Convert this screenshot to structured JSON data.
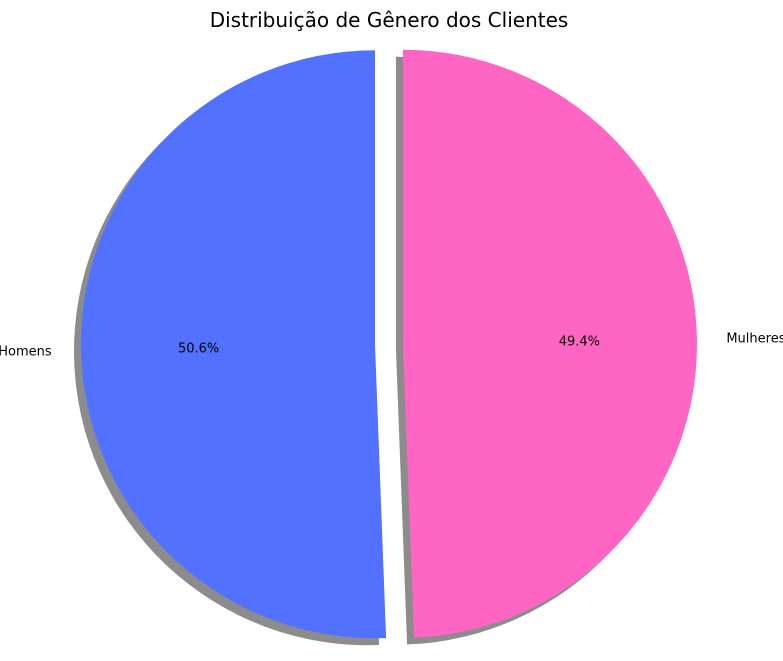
{
  "chart_data": {
    "type": "pie",
    "title": "Distribuição de Gênero dos Clientes",
    "categories": [
      "Homens",
      "Mulheres"
    ],
    "values": [
      50.6,
      49.4
    ],
    "percent_labels": [
      "50.6%",
      "49.4%"
    ],
    "colors": [
      "#5271ff",
      "#ff66c4"
    ],
    "shadow": true,
    "exploded": true,
    "start_angle_deg": 90,
    "direction": "counterclockwise",
    "legend": "none"
  }
}
